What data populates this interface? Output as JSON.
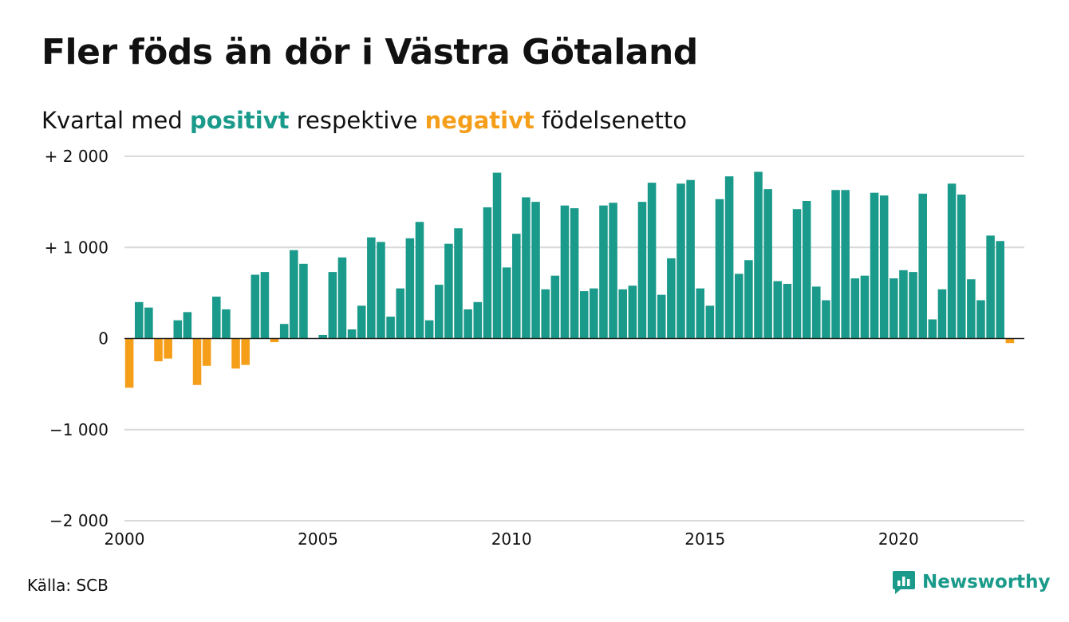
{
  "title": "Fler föds än dör i Västra Götaland",
  "subtitle": {
    "prefix": "Kvartal med",
    "positive_word": "positivt",
    "middle": "respektive",
    "negative_word": "negativt",
    "suffix": "födelsenetto"
  },
  "source": "Källa: SCB",
  "brand": "Newsworthy",
  "colors": {
    "positive": "#1a9a8a",
    "negative": "#f59e1a",
    "grid": "#d9d9d9",
    "text": "#111111"
  },
  "chart_data": {
    "type": "bar",
    "title": "Fler föds än dör i Västra Götaland",
    "subtitle": "Kvartal med positivt respektive negativt födelsenetto",
    "xlabel": "",
    "ylabel": "",
    "ylim": [
      -2000,
      2000
    ],
    "yticks": [
      {
        "value": 2000,
        "label": "+ 2 000"
      },
      {
        "value": 1000,
        "label": "+ 1 000"
      },
      {
        "value": 0,
        "label": "0"
      },
      {
        "value": -1000,
        "label": "−1 000"
      },
      {
        "value": -2000,
        "label": "−2 000"
      }
    ],
    "xticks": [
      {
        "value": 2000,
        "label": "2000"
      },
      {
        "value": 2005,
        "label": "2005"
      },
      {
        "value": 2010,
        "label": "2010"
      },
      {
        "value": 2015,
        "label": "2015"
      },
      {
        "value": 2020,
        "label": "2020"
      }
    ],
    "xlim": [
      2000,
      2023.25
    ],
    "grid": true,
    "start_year": 2000,
    "quarters_per_year": 4,
    "values": [
      -540,
      400,
      340,
      -250,
      -220,
      200,
      290,
      -510,
      -300,
      460,
      320,
      -330,
      -290,
      700,
      730,
      -40,
      160,
      970,
      820,
      0,
      40,
      730,
      890,
      100,
      360,
      1110,
      1060,
      240,
      550,
      1100,
      1280,
      200,
      590,
      1040,
      1210,
      320,
      400,
      1440,
      1820,
      780,
      1150,
      1550,
      1500,
      540,
      690,
      1460,
      1430,
      520,
      550,
      1460,
      1490,
      540,
      580,
      1500,
      1710,
      480,
      880,
      1700,
      1740,
      550,
      360,
      1530,
      1780,
      710,
      860,
      1830,
      1640,
      630,
      600,
      1420,
      1510,
      570,
      420,
      1630,
      1630,
      660,
      690,
      1600,
      1570,
      660,
      750,
      730,
      1590,
      210,
      540,
      1700,
      1580,
      650,
      420,
      1130,
      1070,
      -50
    ]
  }
}
